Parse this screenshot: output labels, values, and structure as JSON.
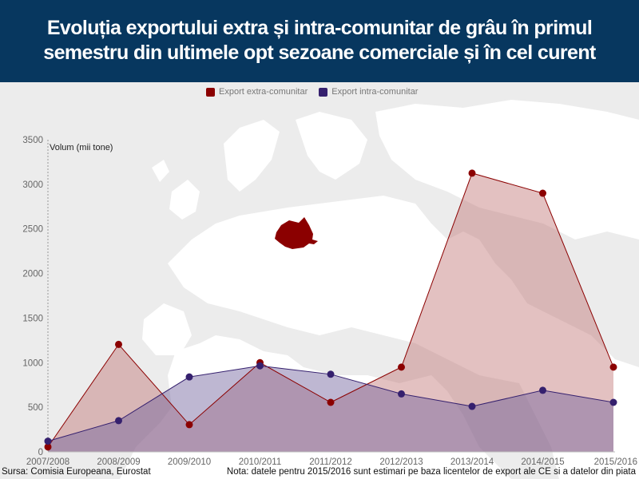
{
  "header": {
    "title_line1": "Evoluția exportului extra și intra-comunitar de grâu în primul",
    "title_line2": "semestru din ultimele opt sezoane comerciale și în cel curent"
  },
  "footer": {
    "source": "Sursa: Comisia Europeana, Eurostat",
    "note": "Nota: datele pentru 2015/2016 sunt estimari pe baza licentelor de export ale CE si a datelor din piata"
  },
  "chart_data": {
    "type": "area",
    "title": "Evoluția exportului extra și intra-comunitar de grâu în primul semestru din ultimele opt sezoane comerciale și în cel curent",
    "ylabel": "Volum (mii tone)",
    "xlabel": "",
    "ylim": [
      0,
      3500
    ],
    "yticks": [
      0,
      500,
      1000,
      1500,
      2000,
      2500,
      3000,
      3500
    ],
    "grid": false,
    "legend": "top-center",
    "categories": [
      "2007/2008",
      "2008/2009",
      "2009/2010",
      "2010/2011",
      "2011/2012",
      "2012/2013",
      "2013/2014",
      "2014/2015",
      "2015/2016"
    ],
    "series": [
      {
        "name": "Export extra-comunitar",
        "color": "#8b0000",
        "fill": "#c27575",
        "values": [
          55,
          1205,
          305,
          1000,
          555,
          950,
          3125,
          2900,
          950
        ]
      },
      {
        "name": "Export intra-comunitar",
        "color": "#35206e",
        "fill": "#6e5f9c",
        "values": [
          120,
          350,
          840,
          965,
          870,
          650,
          510,
          690,
          555
        ]
      }
    ]
  }
}
